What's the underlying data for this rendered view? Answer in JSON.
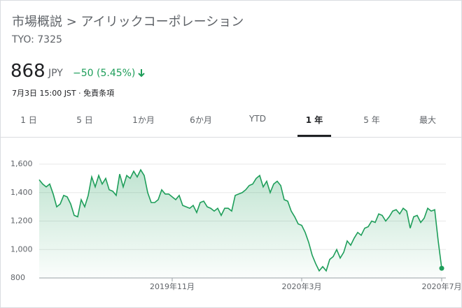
{
  "header": {
    "breadcrumb": "市場概説 > アイリックコーポレーション",
    "ticker": "TYO: 7325",
    "price": "868",
    "currency": "JPY",
    "change": "−50 (5.45%)",
    "timestamp": "7月3日 15:00 JST",
    "separator": "·",
    "disclaimer": "免責条項"
  },
  "tabs": [
    "1 日",
    "5 日",
    "1か月",
    "6か月",
    "YTD",
    "1 年",
    "5 年",
    "最大"
  ],
  "selected_tab": 5,
  "chart_data": {
    "type": "line",
    "color": "#1e9e5a",
    "grid": true,
    "ylim": [
      800,
      1600
    ],
    "yticks": [
      800,
      {
        "value": 1000,
        "label": "1,000"
      },
      {
        "value": 1200,
        "label": "1,200"
      },
      {
        "value": 1400,
        "label": "1,400"
      },
      {
        "value": 1600,
        "label": "1,600"
      }
    ],
    "categories": [
      null,
      null,
      null,
      null,
      null,
      null,
      null,
      null,
      null,
      null,
      null,
      null,
      null,
      null,
      null,
      null,
      null,
      null,
      null,
      null,
      null,
      null,
      null,
      null,
      null,
      null,
      null,
      null,
      null,
      null,
      null,
      null,
      null,
      null,
      null,
      null,
      null,
      null,
      "2019年11月",
      null,
      null,
      null,
      null,
      null,
      null,
      null,
      null,
      null,
      null,
      null,
      null,
      null,
      null,
      null,
      null,
      null,
      null,
      null,
      null,
      null,
      null,
      null,
      null,
      null,
      null,
      null,
      null,
      null,
      null,
      null,
      null,
      null,
      null,
      null,
      null,
      "2020年3月",
      null,
      null,
      null,
      null,
      null,
      null,
      null,
      null,
      null,
      null,
      null,
      null,
      null,
      null,
      null,
      null,
      null,
      null,
      null,
      null,
      null,
      null,
      null,
      null,
      null,
      null,
      null,
      null,
      null,
      null,
      null,
      null,
      null,
      null,
      null,
      null,
      null,
      null,
      null,
      "2020年7月"
    ],
    "values": [
      1490,
      1460,
      1440,
      1460,
      1390,
      1300,
      1320,
      1380,
      1370,
      1320,
      1240,
      1230,
      1350,
      1300,
      1380,
      1510,
      1440,
      1520,
      1460,
      1500,
      1420,
      1410,
      1380,
      1530,
      1440,
      1520,
      1500,
      1550,
      1510,
      1560,
      1520,
      1400,
      1330,
      1330,
      1350,
      1420,
      1390,
      1390,
      1370,
      1350,
      1380,
      1310,
      1300,
      1290,
      1310,
      1260,
      1330,
      1340,
      1300,
      1290,
      1270,
      1290,
      1240,
      1290,
      1290,
      1270,
      1380,
      1390,
      1400,
      1420,
      1450,
      1460,
      1500,
      1520,
      1440,
      1480,
      1400,
      1460,
      1480,
      1450,
      1350,
      1340,
      1270,
      1230,
      1180,
      1170,
      1120,
      1050,
      960,
      900,
      850,
      880,
      850,
      930,
      950,
      1000,
      940,
      980,
      1060,
      1030,
      1080,
      1120,
      1100,
      1150,
      1160,
      1200,
      1190,
      1250,
      1240,
      1200,
      1230,
      1270,
      1280,
      1250,
      1290,
      1270,
      1150,
      1230,
      1240,
      1190,
      1220,
      1290,
      1270,
      1280,
      1060,
      868
    ]
  }
}
